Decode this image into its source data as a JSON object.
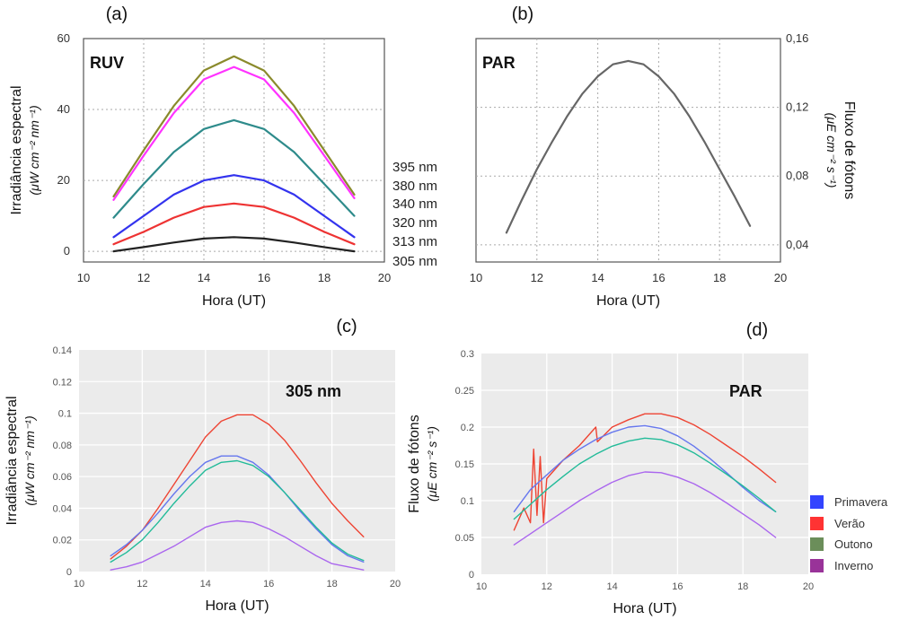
{
  "panel_labels": [
    "(a)",
    "(b)",
    "(c)",
    "(d)"
  ],
  "chart_data": [
    {
      "id": "a",
      "type": "line",
      "panel_label": "(a)",
      "inner_label": "RUV",
      "xlabel": "Hora (UT)",
      "ylabel_line1": "Irradiância espectral",
      "ylabel_line2": "(μW cm⁻² nm⁻¹)",
      "xlim": [
        10,
        20
      ],
      "ylim": [
        -3,
        60
      ],
      "xticks": [
        10,
        12,
        14,
        16,
        18,
        20
      ],
      "yticks": [
        0,
        20,
        40,
        60
      ],
      "grid": true,
      "background": "white",
      "legend": "right-outside",
      "series": [
        {
          "name": "395 nm",
          "color": "#8a8a2c",
          "x": [
            11,
            12,
            13,
            14,
            15,
            16,
            17,
            18,
            19
          ],
          "y": [
            15.5,
            28.5,
            41,
            51,
            55,
            51,
            41,
            28.5,
            16
          ]
        },
        {
          "name": "380 nm",
          "color": "#ff33ff",
          "x": [
            11,
            12,
            13,
            14,
            15,
            16,
            17,
            18,
            19
          ],
          "y": [
            14.5,
            27,
            39,
            48.5,
            52,
            48.5,
            39,
            27,
            15
          ]
        },
        {
          "name": "340 nm",
          "color": "#2e8b8b",
          "x": [
            11,
            12,
            13,
            14,
            15,
            16,
            17,
            18,
            19
          ],
          "y": [
            9.5,
            19,
            28,
            34.5,
            37,
            34.5,
            28,
            19,
            10
          ]
        },
        {
          "name": "320 nm",
          "color": "#3333ee",
          "x": [
            11,
            12,
            13,
            14,
            15,
            16,
            17,
            18,
            19
          ],
          "y": [
            4,
            10,
            16,
            20,
            21.5,
            20,
            16,
            10,
            4
          ]
        },
        {
          "name": "313 nm",
          "color": "#ee3333",
          "x": [
            11,
            12,
            13,
            14,
            15,
            16,
            17,
            18,
            19
          ],
          "y": [
            2,
            5.5,
            9.5,
            12.5,
            13.5,
            12.5,
            9.5,
            5.5,
            2
          ]
        },
        {
          "name": "305 nm",
          "color": "#222222",
          "x": [
            11,
            12,
            13,
            14,
            15,
            16,
            17,
            18,
            19
          ],
          "y": [
            0,
            1.2,
            2.5,
            3.6,
            4,
            3.6,
            2.5,
            1.2,
            0
          ]
        }
      ]
    },
    {
      "id": "b",
      "type": "line",
      "panel_label": "(b)",
      "inner_label": "PAR",
      "xlabel": "Hora (UT)",
      "ylabel_line1": "Fluxo de fótons",
      "ylabel_line2": "(μE cm⁻² s⁻¹)",
      "xlim": [
        10,
        20
      ],
      "ylim": [
        0.03,
        0.16
      ],
      "xticks": [
        10,
        12,
        14,
        16,
        18,
        20
      ],
      "yticks": [
        0.04,
        0.08,
        0.12,
        0.16
      ],
      "ytick_labels": [
        "0,04",
        "0,08",
        "0,12",
        "0,16"
      ],
      "yaxis_side": "right",
      "grid": true,
      "background": "white",
      "series": [
        {
          "color": "#666666",
          "x": [
            11,
            11.5,
            12,
            12.5,
            13,
            13.5,
            14,
            14.5,
            15,
            15.5,
            16,
            16.5,
            17,
            17.5,
            18,
            18.5,
            19
          ],
          "y": [
            0.047,
            0.066,
            0.084,
            0.1,
            0.115,
            0.128,
            0.138,
            0.145,
            0.147,
            0.145,
            0.138,
            0.128,
            0.115,
            0.1,
            0.084,
            0.068,
            0.051
          ]
        }
      ]
    },
    {
      "id": "c",
      "type": "line",
      "panel_label": "(c)",
      "inner_label": "305 nm",
      "xlabel": "Hora (UT)",
      "ylabel_line1": "Irradiância espectral",
      "ylabel_line2": "(μW cm⁻² nm⁻¹)",
      "xlim": [
        10,
        20
      ],
      "ylim": [
        0,
        0.14
      ],
      "xticks": [
        10,
        12,
        14,
        16,
        18,
        20
      ],
      "yticks": [
        0,
        0.02,
        0.04,
        0.06,
        0.08,
        0.1,
        0.12,
        0.14
      ],
      "ytick_labels": [
        "0",
        "0.02",
        "0.04",
        "0.06",
        "0.08",
        "0.1",
        "0.12",
        "0.14"
      ],
      "grid": true,
      "background": "gray",
      "series": [
        {
          "name": "Verão",
          "color": "#ee4433",
          "x": [
            11,
            11.5,
            12,
            12.5,
            13,
            13.5,
            14,
            14.5,
            15,
            15.5,
            16,
            16.5,
            17,
            17.5,
            18,
            18.5,
            19
          ],
          "y": [
            0.008,
            0.016,
            0.026,
            0.04,
            0.055,
            0.07,
            0.085,
            0.095,
            0.099,
            0.099,
            0.093,
            0.083,
            0.07,
            0.056,
            0.043,
            0.032,
            0.022
          ]
        },
        {
          "name": "Primavera",
          "color": "#6677ee",
          "x": [
            11,
            11.5,
            12,
            12.5,
            13,
            13.5,
            14,
            14.5,
            15,
            15.5,
            16,
            16.5,
            17,
            17.5,
            18,
            18.5,
            19
          ],
          "y": [
            0.01,
            0.017,
            0.026,
            0.037,
            0.049,
            0.06,
            0.069,
            0.073,
            0.073,
            0.069,
            0.061,
            0.05,
            0.038,
            0.027,
            0.017,
            0.01,
            0.006
          ]
        },
        {
          "name": "Outono",
          "color": "#22bb99",
          "x": [
            11,
            11.5,
            12,
            12.5,
            13,
            13.5,
            14,
            14.5,
            15,
            15.5,
            16,
            16.5,
            17,
            17.5,
            18,
            18.5,
            19
          ],
          "y": [
            0.006,
            0.012,
            0.02,
            0.031,
            0.043,
            0.054,
            0.064,
            0.069,
            0.07,
            0.067,
            0.06,
            0.05,
            0.039,
            0.028,
            0.018,
            0.011,
            0.007
          ]
        },
        {
          "name": "Inverno",
          "color": "#aa66ee",
          "x": [
            11,
            11.5,
            12,
            12.5,
            13,
            13.5,
            14,
            14.5,
            15,
            15.5,
            16,
            16.5,
            17,
            17.5,
            18,
            18.5,
            19
          ],
          "y": [
            0.001,
            0.003,
            0.006,
            0.011,
            0.016,
            0.022,
            0.028,
            0.031,
            0.032,
            0.031,
            0.027,
            0.022,
            0.016,
            0.01,
            0.005,
            0.003,
            0.001
          ]
        }
      ]
    },
    {
      "id": "d",
      "type": "line",
      "panel_label": "(d)",
      "inner_label": "PAR",
      "xlabel": "Hora (UT)",
      "ylabel_line1": "Fluxo de fótons",
      "ylabel_line2": "(μE cm⁻² s⁻¹)",
      "xlim": [
        10,
        20
      ],
      "ylim": [
        0,
        0.3
      ],
      "xticks": [
        10,
        12,
        14,
        16,
        18,
        20
      ],
      "yticks": [
        0,
        0.05,
        0.1,
        0.15,
        0.2,
        0.25,
        0.3
      ],
      "ytick_labels": [
        "0",
        "0.05",
        "0.1",
        "0.15",
        "0.2",
        "0.25",
        "0.3"
      ],
      "grid": true,
      "background": "gray",
      "legend": "right-outside",
      "series": [
        {
          "name": "Verão",
          "color": "#ee4433",
          "x": [
            11,
            11.3,
            11.5,
            11.6,
            11.7,
            11.8,
            11.9,
            12,
            12.5,
            13,
            13.5,
            13.55,
            14,
            14.5,
            15,
            15.5,
            16,
            16.5,
            17,
            17.5,
            18,
            18.5,
            19
          ],
          "y": [
            0.06,
            0.09,
            0.07,
            0.17,
            0.08,
            0.16,
            0.07,
            0.13,
            0.155,
            0.175,
            0.2,
            0.18,
            0.2,
            0.21,
            0.218,
            0.218,
            0.213,
            0.203,
            0.19,
            0.175,
            0.16,
            0.143,
            0.125
          ]
        },
        {
          "name": "Primavera",
          "color": "#6677ee",
          "x": [
            11,
            11.5,
            12,
            12.5,
            13,
            13.5,
            14,
            14.5,
            15,
            15.5,
            16,
            16.5,
            17,
            17.5,
            18,
            18.5,
            19
          ],
          "y": [
            0.085,
            0.115,
            0.135,
            0.155,
            0.17,
            0.183,
            0.193,
            0.2,
            0.202,
            0.198,
            0.188,
            0.174,
            0.157,
            0.138,
            0.118,
            0.1,
            0.085
          ]
        },
        {
          "name": "Outono",
          "color": "#22bb99",
          "x": [
            11,
            11.5,
            12,
            12.5,
            13,
            13.5,
            14,
            14.5,
            15,
            15.5,
            16,
            16.5,
            17,
            17.5,
            18,
            18.5,
            19
          ],
          "y": [
            0.075,
            0.095,
            0.115,
            0.133,
            0.15,
            0.163,
            0.174,
            0.181,
            0.185,
            0.183,
            0.176,
            0.165,
            0.151,
            0.136,
            0.12,
            0.103,
            0.085
          ]
        },
        {
          "name": "Inverno",
          "color": "#aa66ee",
          "x": [
            11,
            11.5,
            12,
            12.5,
            13,
            13.5,
            14,
            14.5,
            15,
            15.5,
            16,
            16.5,
            17,
            17.5,
            18,
            18.5,
            19
          ],
          "y": [
            0.04,
            0.055,
            0.07,
            0.085,
            0.1,
            0.113,
            0.125,
            0.134,
            0.139,
            0.138,
            0.132,
            0.123,
            0.111,
            0.097,
            0.082,
            0.067,
            0.05
          ]
        }
      ]
    }
  ],
  "legend_cd": [
    {
      "label": "Primavera",
      "color": "#3344ff"
    },
    {
      "label": "Verão",
      "color": "#ff3333"
    },
    {
      "label": "Outono",
      "color": "#6b8e5a"
    },
    {
      "label": "Inverno",
      "color": "#993399"
    }
  ]
}
